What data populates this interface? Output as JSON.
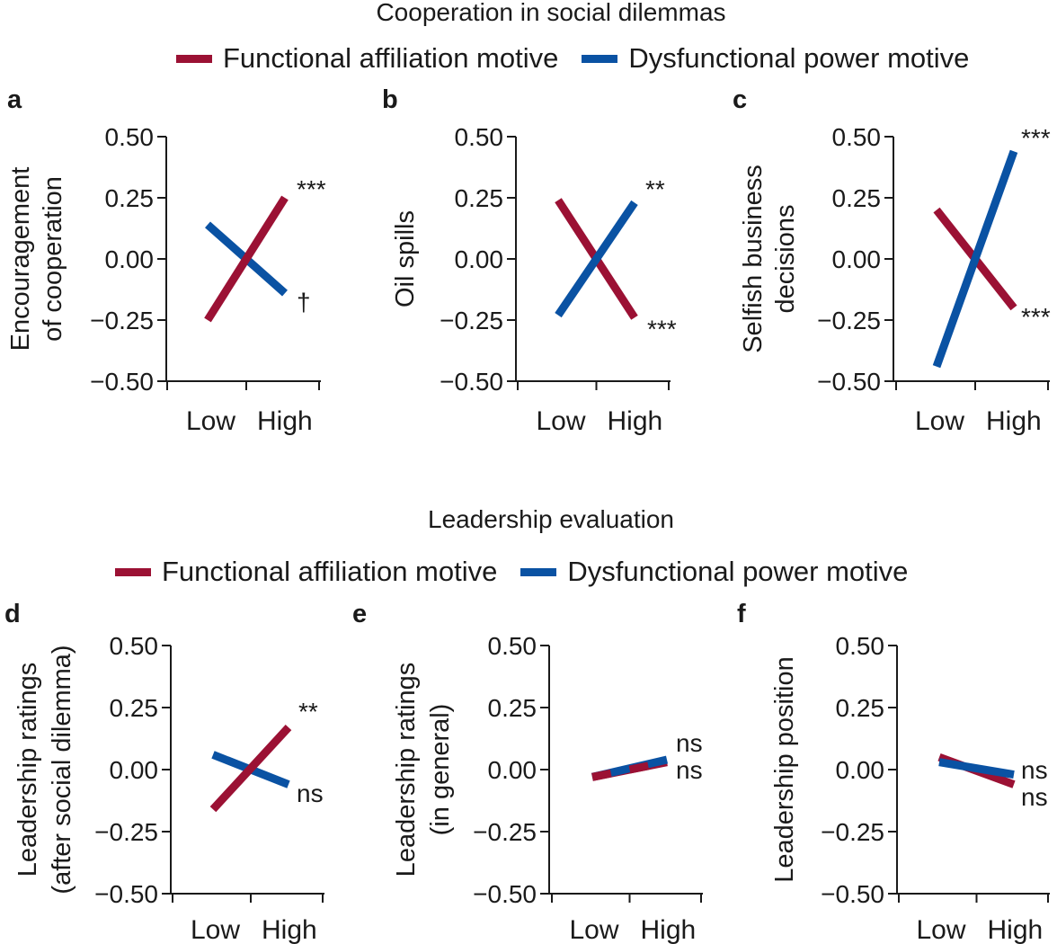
{
  "sections": [
    {
      "title": "Cooperation in social dilemmas",
      "legend": [
        {
          "label": "Functional affiliation motive",
          "color": "#9b1134"
        },
        {
          "label": "Dysfunctional power motive",
          "color": "#0a52a3"
        }
      ]
    },
    {
      "title": "Leadership evaluation",
      "legend": [
        {
          "label": "Functional affiliation motive",
          "color": "#9b1134"
        },
        {
          "label": "Dysfunctional power motive",
          "color": "#0a52a3"
        }
      ]
    }
  ],
  "chart_data": [
    {
      "panel": "a",
      "type": "line",
      "ylabel": [
        "Encouragement",
        "of cooperation"
      ],
      "categories": [
        "Low",
        "High"
      ],
      "ylim": [
        -0.5,
        0.5
      ],
      "yticks": [
        "0.50",
        "0.25",
        "0.00",
        "−0.25",
        "−0.50"
      ],
      "series": [
        {
          "name": "Functional affiliation motive",
          "color": "#9b1134",
          "values": [
            -0.25,
            0.25
          ],
          "label": "***"
        },
        {
          "name": "Dysfunctional power motive",
          "color": "#0a52a3",
          "values": [
            0.14,
            -0.14
          ],
          "label": "†"
        }
      ]
    },
    {
      "panel": "b",
      "type": "line",
      "ylabel": [
        "Oil spills"
      ],
      "categories": [
        "Low",
        "High"
      ],
      "ylim": [
        -0.5,
        0.5
      ],
      "yticks": [
        "0.50",
        "0.25",
        "0.00",
        "−0.25",
        "−0.50"
      ],
      "series": [
        {
          "name": "Functional affiliation motive",
          "color": "#9b1134",
          "values": [
            0.24,
            -0.24
          ],
          "label": "***"
        },
        {
          "name": "Dysfunctional power motive",
          "color": "#0a52a3",
          "values": [
            -0.23,
            0.23
          ],
          "label": "**"
        }
      ]
    },
    {
      "panel": "c",
      "type": "line",
      "ylabel": [
        "Selfish business",
        "decisions"
      ],
      "categories": [
        "Low",
        "High"
      ],
      "ylim": [
        -0.5,
        0.5
      ],
      "yticks": [
        "0.50",
        "0.25",
        "0.00",
        "−0.25",
        "−0.50"
      ],
      "series": [
        {
          "name": "Functional affiliation motive",
          "color": "#9b1134",
          "values": [
            0.2,
            -0.2
          ],
          "label": "***"
        },
        {
          "name": "Dysfunctional power motive",
          "color": "#0a52a3",
          "values": [
            -0.44,
            0.44
          ],
          "label": "***"
        }
      ]
    },
    {
      "panel": "d",
      "type": "line",
      "ylabel": [
        "Leadership ratings",
        "(after social dilemma)"
      ],
      "categories": [
        "Low",
        "High"
      ],
      "ylim": [
        -0.5,
        0.5
      ],
      "yticks": [
        "0.50",
        "0.25",
        "0.00",
        "−0.25",
        "−0.50"
      ],
      "series": [
        {
          "name": "Functional affiliation motive",
          "color": "#9b1134",
          "values": [
            -0.16,
            0.17
          ],
          "label": "**"
        },
        {
          "name": "Dysfunctional power motive",
          "color": "#0a52a3",
          "values": [
            0.06,
            -0.06
          ],
          "label": "ns"
        }
      ]
    },
    {
      "panel": "e",
      "type": "line",
      "ylabel": [
        "Leadership ratings",
        "(in general)"
      ],
      "categories": [
        "Low",
        "High"
      ],
      "ylim": [
        -0.5,
        0.5
      ],
      "yticks": [
        "0.50",
        "0.25",
        "0.00",
        "−0.25",
        "−0.50"
      ],
      "series": [
        {
          "name": "Functional affiliation motive",
          "color": "#9b1134",
          "values": [
            -0.03,
            0.03
          ],
          "label": "ns"
        },
        {
          "name": "Dysfunctional power motive",
          "color": "#0a52a3",
          "values": [
            -0.03,
            0.04
          ],
          "label": "ns"
        }
      ]
    },
    {
      "panel": "f",
      "type": "line",
      "ylabel": [
        "Leadership position"
      ],
      "categories": [
        "Low",
        "High"
      ],
      "ylim": [
        -0.5,
        0.5
      ],
      "yticks": [
        "0.50",
        "0.25",
        "0.00",
        "−0.25",
        "−0.50"
      ],
      "series": [
        {
          "name": "Functional affiliation motive",
          "color": "#9b1134",
          "values": [
            0.05,
            -0.06
          ],
          "label": "ns"
        },
        {
          "name": "Dysfunctional power motive",
          "color": "#0a52a3",
          "values": [
            0.03,
            -0.02
          ],
          "label": "ns"
        }
      ]
    }
  ]
}
